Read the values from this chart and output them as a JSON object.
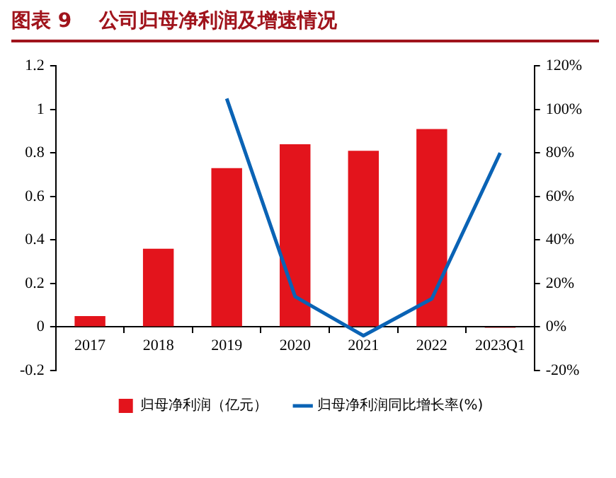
{
  "chart_data": {
    "type": "bar",
    "title": "图表 9    公司归母净利润及增速情况",
    "categories": [
      "2017",
      "2018",
      "2019",
      "2020",
      "2021",
      "2022",
      "2023Q1"
    ],
    "series": [
      {
        "name": "归母净利润（亿元）",
        "color": "#e3141c",
        "values": [
          0.05,
          0.36,
          0.73,
          0.84,
          0.81,
          0.91,
          -0.005
        ]
      },
      {
        "name": "归母净利润同比增长率(%)",
        "type": "line",
        "axis": "y2",
        "color": "#0a63b5",
        "marker": "none",
        "line_style": "solid",
        "values": [
          null,
          null,
          105,
          14,
          -4,
          13,
          80
        ]
      }
    ],
    "ylim": [
      -0.2,
      1.2
    ],
    "yticks": [
      -0.2,
      0,
      0.2,
      0.4,
      0.6,
      0.8,
      1,
      1.2
    ],
    "y2lim": [
      -20,
      120
    ],
    "y2ticks": [
      {
        "value": -20,
        "label": "-20%"
      },
      {
        "value": 0,
        "label": "0%"
      },
      {
        "value": 20,
        "label": "20%"
      },
      {
        "value": 40,
        "label": "40%"
      },
      {
        "value": 60,
        "label": "60%"
      },
      {
        "value": 80,
        "label": "80%"
      },
      {
        "value": 100,
        "label": "100%"
      },
      {
        "value": 120,
        "label": "120%"
      }
    ],
    "grid": false,
    "legend": "bottom"
  }
}
